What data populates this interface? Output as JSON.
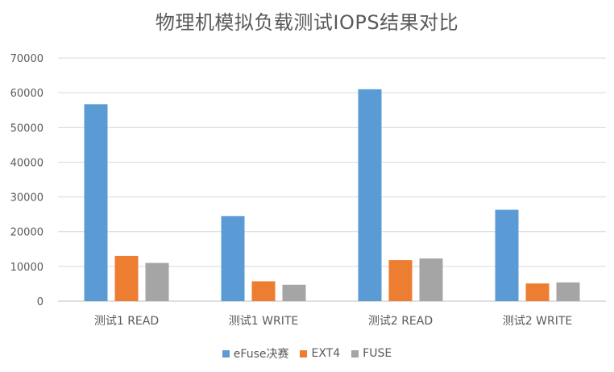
{
  "chart_data": {
    "type": "bar",
    "title": "物理机模拟负载测试IOPS结果对比",
    "xlabel": "",
    "ylabel": "",
    "categories": [
      "测试1 READ",
      "测试1 WRITE",
      "测试2 READ",
      "测试2 WRITE"
    ],
    "series": [
      {
        "name": "eFuse决赛",
        "color": "#5B9BD5",
        "values": [
          56700,
          24500,
          61000,
          26300
        ]
      },
      {
        "name": "EXT4",
        "color": "#ED7D31",
        "values": [
          13000,
          5700,
          11800,
          5100
        ]
      },
      {
        "name": "FUSE",
        "color": "#A5A5A5",
        "values": [
          11000,
          4700,
          12300,
          5400
        ]
      }
    ],
    "ylim": [
      0,
      70000
    ],
    "yticks": [
      "0",
      "10000",
      "20000",
      "30000",
      "40000",
      "50000",
      "60000",
      "70000"
    ],
    "grid": true,
    "legend_position": "bottom"
  }
}
